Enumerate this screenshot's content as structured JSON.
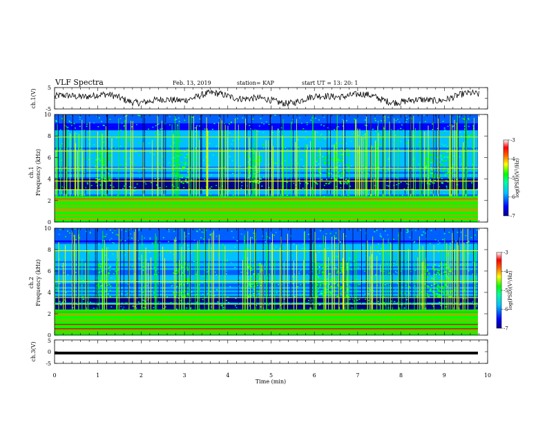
{
  "header": {
    "title": "VLF Spectra",
    "date": "Feb. 13, 2019",
    "station": "station= KAP",
    "start": "start  UT  =   13: 20: 1"
  },
  "chart_data": [
    {
      "type": "line",
      "panel": "ch1-waveform",
      "ylabel": "ch.1(V)",
      "ylim": [
        -5,
        5
      ],
      "yticks": [
        "5",
        "-5"
      ],
      "xlim": [
        0,
        10
      ],
      "series": [
        {
          "color": "#000000"
        }
      ]
    },
    {
      "type": "heatmap",
      "panel": "ch1-spectrogram",
      "ylabel": "ch.1\nFrequency (kHz)",
      "ylim": [
        0,
        10
      ],
      "yticks": [
        "0",
        "2",
        "4",
        "6",
        "8",
        "10"
      ],
      "xlim": [
        0,
        10
      ],
      "colorbar": {
        "label": "log(PSD)(V²/Hz)",
        "range": [
          -7,
          -3
        ],
        "ticks": [
          "-3",
          "-4",
          "-5",
          "-6",
          "-7"
        ]
      },
      "bright_bands_khz": [
        0.3,
        0.6,
        1.0,
        1.2,
        1.5,
        1.9,
        2.2,
        3.0,
        3.8,
        5.0,
        6.6,
        7.9
      ],
      "dark_bands_khz": [
        3.3,
        3.7
      ],
      "emission_bursts_min": [
        1.1,
        2.9,
        4.6,
        6.2,
        6.6,
        8.7,
        9.0
      ]
    },
    {
      "type": "heatmap",
      "panel": "ch2-spectrogram",
      "ylabel": "ch.2\nFrequency (kHz)",
      "ylim": [
        0,
        10
      ],
      "yticks": [
        "0",
        "2",
        "4",
        "6",
        "8",
        "10"
      ],
      "xlim": [
        0,
        10
      ],
      "colorbar": {
        "label": "log(PSD)(V²/Hz)",
        "range": [
          -7,
          -3
        ],
        "ticks": [
          "-3",
          "-4",
          "-5",
          "-6",
          "-7"
        ]
      },
      "bright_bands_khz": [
        0.3,
        0.6,
        1.0,
        1.4,
        1.9,
        2.9,
        3.5,
        5.0,
        7.9
      ],
      "dark_bands_khz": [
        2.6,
        3.2
      ],
      "emission_bursts_min": [
        1.1,
        2.9,
        4.6,
        6.2,
        6.6,
        8.7,
        9.0
      ]
    },
    {
      "type": "line",
      "panel": "ch3-waveform",
      "ylabel": "ch.3(V)",
      "ylim": [
        -5,
        5
      ],
      "yticks": [
        "5",
        "0",
        "-5"
      ],
      "xlim": [
        0,
        10
      ],
      "series": [
        {
          "color": "#000000",
          "constant": -1.0
        }
      ]
    }
  ],
  "xaxis": {
    "label": "Time  (min)",
    "ticks": [
      "0",
      "1",
      "2",
      "3",
      "4",
      "5",
      "6",
      "7",
      "8",
      "9",
      "10"
    ]
  },
  "colors": {
    "colormap": [
      "#00008b",
      "#0000ff",
      "#0060ff",
      "#00c0ff",
      "#00ffa0",
      "#00ff00",
      "#c0ff00",
      "#ffff00",
      "#ff8000",
      "#ff0000",
      "#ffc0c0",
      "#ffffff"
    ]
  }
}
